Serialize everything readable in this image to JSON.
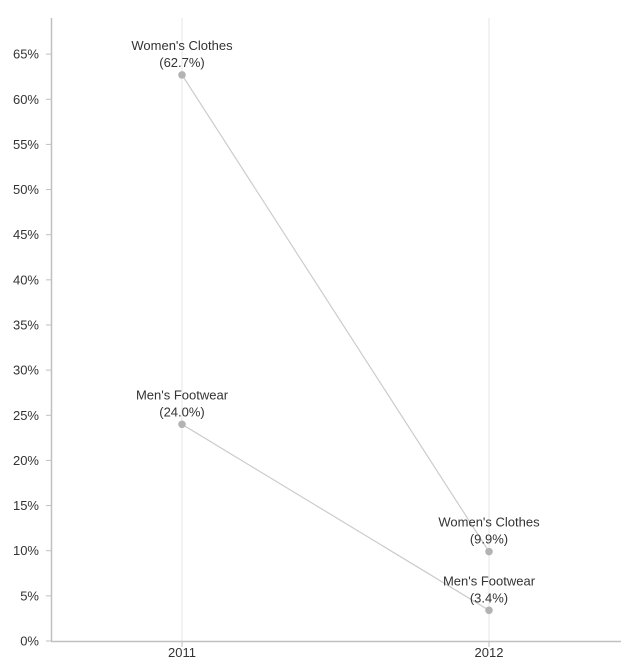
{
  "chart_data": {
    "type": "line",
    "categories": [
      "2011",
      "2012"
    ],
    "ylim": [
      0,
      69
    ],
    "y_ticks": [
      0,
      5,
      10,
      15,
      20,
      25,
      30,
      35,
      40,
      45,
      50,
      55,
      60,
      65
    ],
    "y_tick_format": "%",
    "grid": "vertical",
    "legend": "none",
    "series": [
      {
        "name": "Women's Clothes",
        "values": [
          62.7,
          9.9
        ],
        "value_labels": [
          "(62.7%)",
          "(9.9%)"
        ]
      },
      {
        "name": "Men's Footwear",
        "values": [
          24.0,
          3.4
        ],
        "value_labels": [
          "(24.0%)",
          "(3.4%)"
        ]
      }
    ],
    "colors": {
      "line": "#cccccc",
      "marker": "#b3b3b3",
      "axis": "#c0c0c0",
      "gridline": "#e6e6e6",
      "text": "#333333"
    }
  }
}
